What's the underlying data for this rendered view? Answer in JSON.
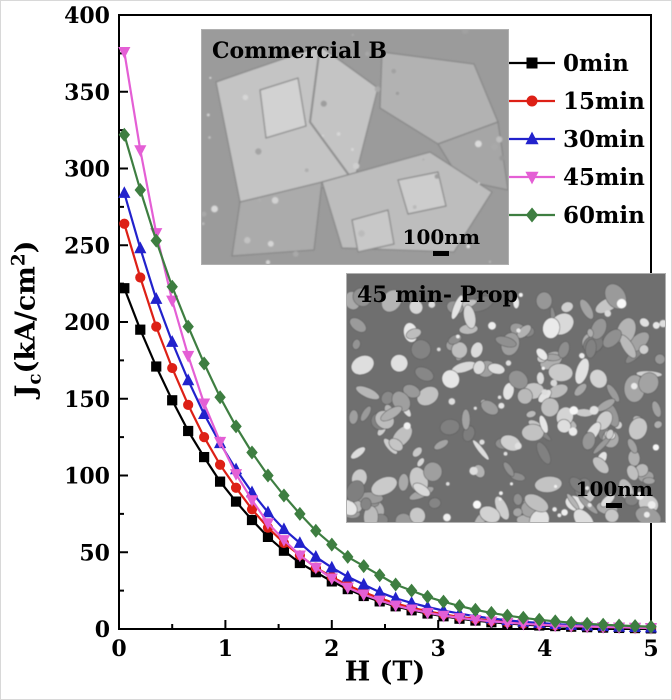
{
  "figure": {
    "xlabel": "H (T)",
    "ylabel": {
      "main": "J",
      "sub": "c",
      "unit_open": "(kA/cm",
      "sup": "2",
      "unit_close": ")"
    },
    "insets": [
      {
        "label": "Commercial B",
        "scalebar": "100nm"
      },
      {
        "label": "45 min- Prop",
        "scalebar": "100nm"
      }
    ]
  },
  "chart_data": {
    "type": "line",
    "title": "",
    "xlabel": "H (T)",
    "ylabel": "Jc (kA/cm2)",
    "xlim": [
      0,
      5
    ],
    "ylim": [
      0,
      400
    ],
    "x_major_tick": 1,
    "x_minor_tick": 0.5,
    "y_major_tick": 50,
    "y_minor_tick": 25,
    "grid": false,
    "legend_position": "top-right",
    "x": [
      0.05,
      0.2,
      0.35,
      0.5,
      0.65,
      0.8,
      0.95,
      1.1,
      1.25,
      1.4,
      1.55,
      1.7,
      1.85,
      2.0,
      2.15,
      2.3,
      2.45,
      2.6,
      2.75,
      2.9,
      3.05,
      3.2,
      3.35,
      3.5,
      3.65,
      3.8,
      3.95,
      4.1,
      4.25,
      4.4,
      4.55,
      4.7,
      4.85,
      5.0
    ],
    "series": [
      {
        "name": "0min",
        "color": "#000000",
        "marker": "square",
        "values": [
          222,
          195,
          171,
          149,
          129,
          112,
          96,
          83,
          71,
          60,
          51,
          43,
          37,
          31,
          26,
          21.5,
          18,
          14.8,
          12.2,
          10.1,
          8.3,
          6.7,
          5.5,
          4.4,
          3.6,
          2.9,
          2.3,
          1.9,
          1.5,
          1.2,
          0.9,
          0.7,
          0.6,
          0.4
        ]
      },
      {
        "name": "15min",
        "color": "#dd2016",
        "marker": "circle",
        "values": [
          264,
          229,
          197,
          170,
          146,
          125,
          107,
          92,
          78,
          66,
          56,
          48,
          40,
          34,
          28.5,
          24,
          20,
          16.7,
          13.9,
          11.6,
          9.6,
          7.9,
          6.6,
          5.4,
          4.4,
          3.6,
          3.0,
          2.4,
          2.0,
          1.6,
          1.3,
          1.1,
          0.9,
          0.7
        ]
      },
      {
        "name": "30min",
        "color": "#2222cc",
        "marker": "triangle-up",
        "values": [
          284,
          248,
          215,
          187,
          162,
          140,
          121,
          104,
          89,
          76,
          65,
          56,
          47,
          40,
          34,
          29,
          24,
          20,
          17,
          14.3,
          12,
          10,
          8.3,
          6.9,
          5.7,
          4.7,
          3.9,
          3.2,
          2.6,
          2.1,
          1.8,
          1.4,
          1.2,
          0.9
        ]
      },
      {
        "name": "45min",
        "color": "#e45fd5",
        "marker": "triangle-down",
        "values": [
          376,
          312,
          258,
          214,
          178,
          147,
          122,
          101,
          84,
          69,
          58,
          48,
          40,
          33,
          27,
          22.5,
          18.6,
          15.4,
          12.8,
          10.6,
          8.7,
          7.2,
          6.0,
          5.0,
          4.1,
          3.4,
          2.8,
          2.3,
          1.9,
          1.6,
          1.3,
          1.1,
          0.9,
          0.7
        ]
      },
      {
        "name": "60min",
        "color": "#3e7e41",
        "marker": "diamond",
        "values": [
          322,
          286,
          253,
          223,
          197,
          173,
          151,
          132,
          115,
          100,
          87,
          75,
          64,
          55,
          47,
          41,
          35,
          29,
          25,
          21,
          17.8,
          15,
          12.5,
          10.5,
          8.7,
          7.3,
          6.0,
          5.0,
          4.1,
          3.4,
          2.8,
          2.3,
          1.9,
          1.5
        ]
      }
    ]
  }
}
